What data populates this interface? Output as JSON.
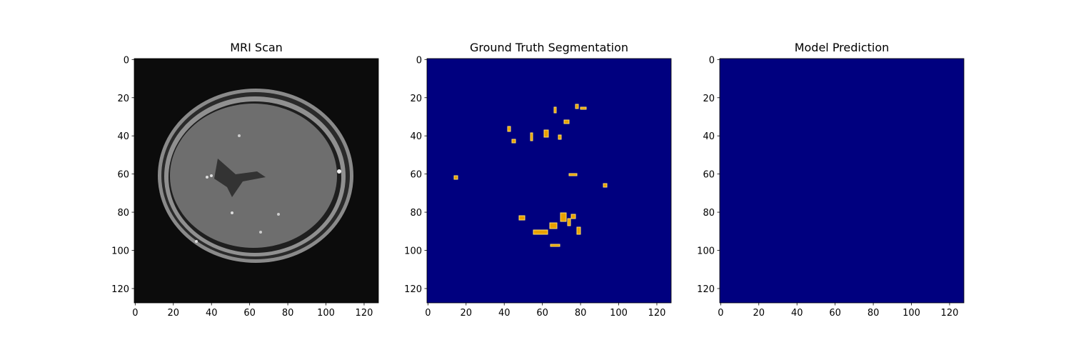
{
  "chart_data": [
    {
      "type": "image",
      "title": "MRI Scan",
      "xlim": [
        -0.5,
        127.5
      ],
      "ylim": [
        127.5,
        -0.5
      ],
      "xticks": [
        0,
        20,
        40,
        60,
        80,
        100,
        120
      ],
      "yticks": [
        0,
        20,
        40,
        60,
        80,
        100,
        120
      ]
    },
    {
      "type": "image",
      "title": "Ground Truth Segmentation",
      "xlim": [
        -0.5,
        127.5
      ],
      "ylim": [
        127.5,
        -0.5
      ],
      "xticks": [
        0,
        20,
        40,
        60,
        80,
        100,
        120
      ],
      "yticks": [
        0,
        20,
        40,
        60,
        80,
        100,
        120
      ]
    },
    {
      "type": "image",
      "title": "Model Prediction",
      "xlim": [
        -0.5,
        127.5
      ],
      "ylim": [
        127.5,
        -0.5
      ],
      "xticks": [
        0,
        20,
        40,
        60,
        80,
        100,
        120
      ],
      "yticks": [
        0,
        20,
        40,
        60,
        80,
        100,
        120
      ]
    }
  ]
}
